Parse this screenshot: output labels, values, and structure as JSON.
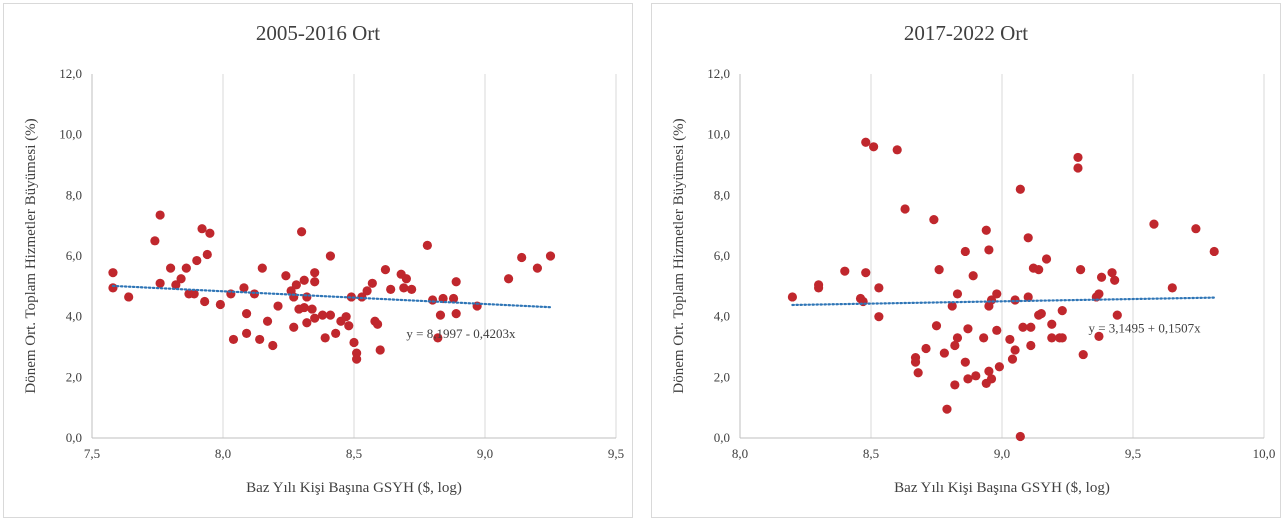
{
  "chart_data": [
    {
      "type": "scatter",
      "title": "2005-2016 Ort",
      "xlabel": "Baz Yılı Kişi Başına GSYH ($, log)",
      "ylabel": "Dönem Ort. Toplam Hizmetler Büyümesi (%)",
      "xlim": [
        7.5,
        9.5
      ],
      "ylim": [
        0,
        12
      ],
      "x_ticks": [
        "7,5",
        "8,0",
        "8,5",
        "9,0",
        "9,5"
      ],
      "y_ticks": [
        "0,0",
        "2,0",
        "4,0",
        "6,0",
        "8,0",
        "10,0",
        "12,0"
      ],
      "grid": "vertical",
      "point_color": "#c0272d",
      "trend_color": "#2e75b6",
      "trendline": {
        "intercept": 8.1997,
        "slope": -0.4203,
        "label": "y = 8,1997 - 0,4203x"
      },
      "points": [
        [
          7.58,
          5.45
        ],
        [
          7.58,
          4.95
        ],
        [
          7.64,
          4.65
        ],
        [
          7.74,
          6.5
        ],
        [
          7.76,
          7.35
        ],
        [
          7.76,
          5.1
        ],
        [
          7.8,
          5.6
        ],
        [
          7.82,
          5.05
        ],
        [
          7.84,
          5.25
        ],
        [
          7.86,
          5.6
        ],
        [
          7.87,
          4.75
        ],
        [
          7.89,
          4.75
        ],
        [
          7.9,
          5.85
        ],
        [
          7.92,
          6.9
        ],
        [
          7.93,
          4.5
        ],
        [
          7.94,
          6.05
        ],
        [
          7.95,
          6.75
        ],
        [
          7.99,
          4.4
        ],
        [
          8.03,
          4.75
        ],
        [
          8.04,
          3.25
        ],
        [
          8.08,
          4.95
        ],
        [
          8.09,
          3.45
        ],
        [
          8.09,
          4.1
        ],
        [
          8.12,
          4.75
        ],
        [
          8.14,
          3.25
        ],
        [
          8.15,
          5.6
        ],
        [
          8.17,
          3.85
        ],
        [
          8.19,
          3.05
        ],
        [
          8.21,
          4.35
        ],
        [
          8.24,
          5.35
        ],
        [
          8.26,
          4.85
        ],
        [
          8.27,
          4.65
        ],
        [
          8.27,
          3.65
        ],
        [
          8.28,
          5.05
        ],
        [
          8.29,
          4.25
        ],
        [
          8.3,
          6.8
        ],
        [
          8.31,
          5.2
        ],
        [
          8.31,
          4.3
        ],
        [
          8.32,
          4.65
        ],
        [
          8.32,
          3.8
        ],
        [
          8.34,
          4.25
        ],
        [
          8.35,
          3.95
        ],
        [
          8.35,
          5.45
        ],
        [
          8.35,
          5.15
        ],
        [
          8.38,
          4.05
        ],
        [
          8.39,
          3.3
        ],
        [
          8.41,
          4.05
        ],
        [
          8.41,
          6.0
        ],
        [
          8.43,
          3.45
        ],
        [
          8.45,
          3.85
        ],
        [
          8.47,
          4.0
        ],
        [
          8.48,
          3.7
        ],
        [
          8.49,
          4.65
        ],
        [
          8.5,
          3.15
        ],
        [
          8.51,
          2.8
        ],
        [
          8.51,
          2.6
        ],
        [
          8.53,
          4.65
        ],
        [
          8.55,
          4.85
        ],
        [
          8.57,
          5.1
        ],
        [
          8.58,
          3.85
        ],
        [
          8.59,
          3.75
        ],
        [
          8.6,
          2.9
        ],
        [
          8.62,
          5.55
        ],
        [
          8.64,
          4.9
        ],
        [
          8.68,
          5.4
        ],
        [
          8.69,
          4.95
        ],
        [
          8.7,
          5.25
        ],
        [
          8.72,
          4.9
        ],
        [
          8.78,
          6.35
        ],
        [
          8.8,
          4.55
        ],
        [
          8.82,
          3.3
        ],
        [
          8.83,
          4.05
        ],
        [
          8.84,
          4.6
        ],
        [
          8.88,
          4.6
        ],
        [
          8.89,
          4.1
        ],
        [
          8.89,
          5.15
        ],
        [
          8.97,
          4.35
        ],
        [
          9.09,
          5.25
        ],
        [
          9.14,
          5.95
        ],
        [
          9.2,
          5.6
        ],
        [
          9.25,
          6.0
        ]
      ]
    },
    {
      "type": "scatter",
      "title": "2017-2022 Ort",
      "xlabel": "Baz Yılı Kişi Başına GSYH ($, log)",
      "ylabel": "Dönem Ort. Toplam Hizmetler Büyümesi (%)",
      "xlim": [
        8.0,
        10.0
      ],
      "ylim": [
        0,
        12
      ],
      "x_ticks": [
        "8,0",
        "8,5",
        "9,0",
        "9,5",
        "10,0"
      ],
      "y_ticks": [
        "0,0",
        "2,0",
        "4,0",
        "6,0",
        "8,0",
        "10,0",
        "12,0"
      ],
      "grid": "vertical",
      "point_color": "#c0272d",
      "trend_color": "#2e75b6",
      "trendline": {
        "intercept": 3.1495,
        "slope": 0.1507,
        "label": "y = 3,1495 + 0,1507x"
      },
      "points": [
        [
          8.2,
          4.65
        ],
        [
          8.3,
          5.05
        ],
        [
          8.3,
          4.95
        ],
        [
          8.4,
          5.5
        ],
        [
          8.46,
          4.6
        ],
        [
          8.47,
          4.5
        ],
        [
          8.48,
          5.45
        ],
        [
          8.48,
          9.75
        ],
        [
          8.51,
          9.6
        ],
        [
          8.53,
          4.0
        ],
        [
          8.53,
          4.95
        ],
        [
          8.6,
          9.5
        ],
        [
          8.63,
          7.55
        ],
        [
          8.67,
          2.65
        ],
        [
          8.67,
          2.5
        ],
        [
          8.68,
          2.15
        ],
        [
          8.71,
          2.95
        ],
        [
          8.74,
          7.2
        ],
        [
          8.75,
          3.7
        ],
        [
          8.76,
          5.55
        ],
        [
          8.78,
          2.8
        ],
        [
          8.79,
          0.95
        ],
        [
          8.81,
          4.35
        ],
        [
          8.82,
          1.75
        ],
        [
          8.82,
          3.05
        ],
        [
          8.83,
          3.3
        ],
        [
          8.83,
          4.75
        ],
        [
          8.86,
          2.5
        ],
        [
          8.86,
          6.15
        ],
        [
          8.87,
          3.6
        ],
        [
          8.87,
          1.95
        ],
        [
          8.89,
          5.35
        ],
        [
          8.9,
          2.05
        ],
        [
          8.93,
          3.3
        ],
        [
          8.94,
          6.85
        ],
        [
          8.94,
          1.8
        ],
        [
          8.95,
          6.2
        ],
        [
          8.95,
          4.35
        ],
        [
          8.95,
          2.2
        ],
        [
          8.96,
          1.95
        ],
        [
          8.96,
          4.55
        ],
        [
          8.98,
          3.55
        ],
        [
          8.98,
          4.75
        ],
        [
          8.99,
          2.35
        ],
        [
          9.03,
          3.25
        ],
        [
          9.04,
          2.6
        ],
        [
          9.05,
          4.55
        ],
        [
          9.05,
          2.9
        ],
        [
          9.07,
          0.05
        ],
        [
          9.07,
          8.2
        ],
        [
          9.08,
          3.65
        ],
        [
          9.1,
          6.6
        ],
        [
          9.1,
          4.65
        ],
        [
          9.11,
          3.65
        ],
        [
          9.11,
          3.05
        ],
        [
          9.12,
          5.6
        ],
        [
          9.14,
          5.55
        ],
        [
          9.14,
          4.05
        ],
        [
          9.15,
          4.1
        ],
        [
          9.17,
          5.9
        ],
        [
          9.19,
          3.3
        ],
        [
          9.19,
          3.75
        ],
        [
          9.22,
          3.3
        ],
        [
          9.23,
          4.2
        ],
        [
          9.23,
          3.3
        ],
        [
          9.29,
          9.25
        ],
        [
          9.29,
          8.9
        ],
        [
          9.3,
          5.55
        ],
        [
          9.31,
          2.75
        ],
        [
          9.36,
          4.65
        ],
        [
          9.37,
          4.75
        ],
        [
          9.37,
          3.35
        ],
        [
          9.38,
          5.3
        ],
        [
          9.42,
          5.45
        ],
        [
          9.43,
          5.2
        ],
        [
          9.44,
          4.05
        ],
        [
          9.58,
          7.05
        ],
        [
          9.65,
          4.95
        ],
        [
          9.74,
          6.9
        ],
        [
          9.81,
          6.15
        ]
      ]
    }
  ]
}
